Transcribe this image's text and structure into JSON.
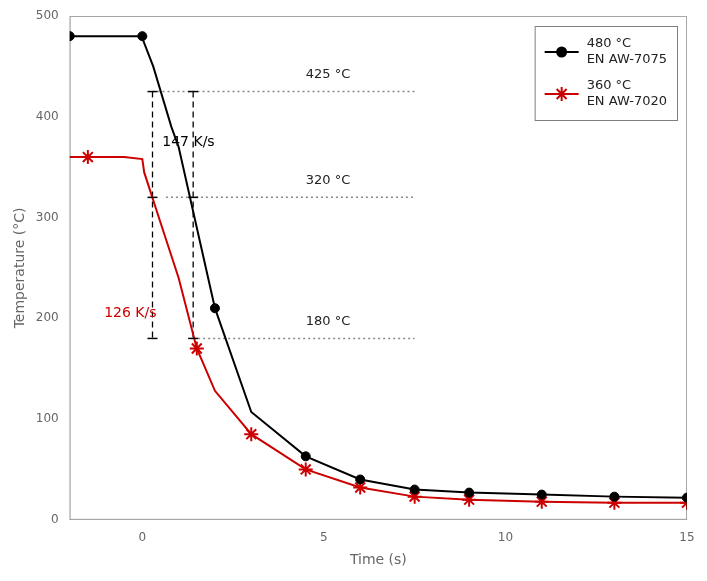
{
  "chart_data": {
    "type": "line",
    "xlabel": "Time (s)",
    "ylabel": "Temperature (°C)",
    "xlim": [
      -2,
      15
    ],
    "ylim": [
      0,
      500
    ],
    "xticks": [
      0,
      5,
      10,
      15
    ],
    "yticks": [
      0,
      100,
      200,
      300,
      400,
      500
    ],
    "grid": false,
    "legend": "upper right",
    "series": [
      {
        "name": "480 °C\nEN AW-7075",
        "color": "#000000",
        "marker": "circle",
        "x": [
          -2.0,
          -0.05,
          0.0,
          0.3,
          0.8,
          1.0,
          2.0,
          3.0,
          4.5,
          6.0,
          7.5,
          9.0,
          11.0,
          13.0,
          15.0
        ],
        "values": [
          480,
          480,
          478,
          450,
          390,
          370,
          210,
          107,
          63,
          40,
          30,
          27,
          25,
          23,
          22
        ],
        "marker_x": [
          -2.0,
          0.0,
          2.0,
          4.5,
          6.0,
          7.5,
          9.0,
          11.0,
          13.0,
          15.0
        ],
        "marker_values": [
          480,
          480,
          210,
          63,
          40,
          30,
          27,
          25,
          23,
          22
        ]
      },
      {
        "name": "360 °C\nEN AW-7020",
        "color": "#cc0000",
        "marker": "star",
        "x": [
          -2.0,
          -1.0,
          -0.5,
          -0.5,
          0.0,
          0.05,
          0.5,
          1.0,
          1.5,
          2.0,
          3.0,
          4.5,
          6.0,
          7.5,
          9.0,
          11.0,
          13.0,
          15.0
        ],
        "values": [
          360,
          360,
          360,
          360,
          358,
          345,
          295,
          240,
          170,
          128,
          85,
          50,
          32,
          23,
          20,
          18,
          17,
          17
        ],
        "marker_x": [
          -1.5,
          1.5,
          3.0,
          4.5,
          6.0,
          7.5,
          9.0,
          11.0,
          13.0,
          15.0
        ],
        "marker_values": [
          360,
          170,
          85,
          50,
          32,
          23,
          20,
          18,
          17,
          17
        ]
      }
    ],
    "reference_lines": [
      {
        "x": [
          0.28,
          7.5
        ],
        "y": 425,
        "color": "#888888",
        "line_style": "dotted",
        "label": "425 °C",
        "label_x": 4.5,
        "label_y": 435
      },
      {
        "x": [
          0.65,
          7.5
        ],
        "y": 320,
        "color": "#888888",
        "line_style": "dotted",
        "label": "320 °C",
        "label_x": 4.5,
        "label_y": 330
      },
      {
        "x": [
          1.4,
          7.5
        ],
        "y": 180,
        "color": "#888888",
        "line_style": "dotted",
        "label": "180 °C",
        "label_x": 4.5,
        "label_y": 190
      }
    ],
    "slope_lines": {
      "x": [
        0.28,
        1.4
      ],
      "y": [
        425,
        180
      ],
      "tick_values": [
        425,
        320,
        180
      ],
      "color": "#000000",
      "line_style": "dashed"
    },
    "annotations": [
      {
        "text": "147 K/s",
        "x": 0.55,
        "y": 375,
        "color": "#000000"
      },
      {
        "text": "126 K/s",
        "x": -1.05,
        "y": 205,
        "color": "#cc0000"
      }
    ]
  }
}
